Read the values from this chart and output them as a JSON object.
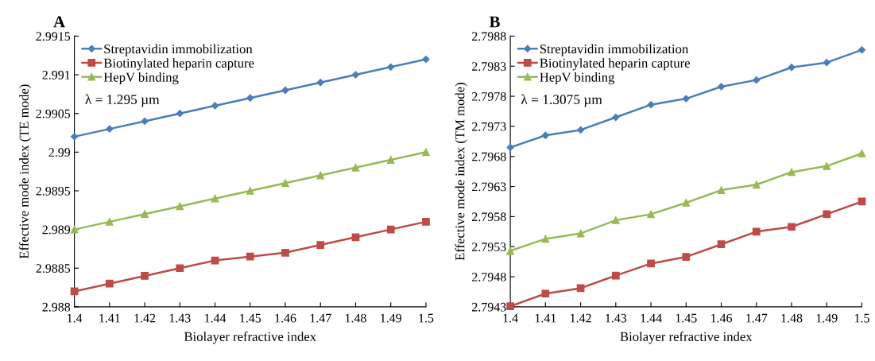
{
  "chart_data": [
    {
      "type": "line",
      "title": "A",
      "xlabel": "Biolayer refractive index",
      "ylabel": "Effective mode index (TE mode)",
      "x": [
        1.4,
        1.41,
        1.42,
        1.43,
        1.44,
        1.45,
        1.46,
        1.47,
        1.48,
        1.49,
        1.5
      ],
      "series": [
        {
          "name": "Streptavidin immobilization",
          "color": "#4a7ebb",
          "marker": "diamond",
          "values": [
            2.9902,
            2.9903,
            2.9904,
            2.9905,
            2.9906,
            2.9907,
            2.9908,
            2.9909,
            2.991,
            2.9911,
            2.9912
          ]
        },
        {
          "name": "Biotinylated heparin capture",
          "color": "#be4b48",
          "marker": "square",
          "values": [
            2.9882,
            2.9883,
            2.9884,
            2.9885,
            2.9886,
            2.98865,
            2.9887,
            2.9888,
            2.9889,
            2.989,
            2.9891
          ]
        },
        {
          "name": "HepV binding",
          "color": "#98b954",
          "marker": "triangle",
          "values": [
            2.989,
            2.9891,
            2.9892,
            2.9893,
            2.9894,
            2.9895,
            2.9896,
            2.9897,
            2.9898,
            2.9899,
            2.99
          ]
        }
      ],
      "xlim": [
        1.4,
        1.5
      ],
      "xticks": [
        1.4,
        1.41,
        1.42,
        1.43,
        1.44,
        1.45,
        1.46,
        1.47,
        1.48,
        1.49,
        1.5
      ],
      "ylim": [
        2.988,
        2.9915
      ],
      "yticks": [
        2.988,
        2.9885,
        2.989,
        2.9895,
        2.99,
        2.9905,
        2.991,
        2.9915
      ],
      "annotations": [
        "λ = 1.295 µm"
      ],
      "legend": "top left",
      "grid": false,
      "line_style": "solid"
    },
    {
      "type": "line",
      "title": "B",
      "xlabel": "Biolayer refractive index",
      "ylabel": "Effective mode index (TM mode)",
      "x": [
        1.4,
        1.41,
        1.42,
        1.43,
        1.44,
        1.45,
        1.46,
        1.47,
        1.48,
        1.49,
        1.5
      ],
      "series": [
        {
          "name": "Streptavidin immobilization",
          "color": "#4a7ebb",
          "marker": "diamond",
          "values": [
            2.79695,
            2.79715,
            2.79724,
            2.79745,
            2.79766,
            2.79776,
            2.79796,
            2.79807,
            2.79828,
            2.79836,
            2.79857
          ]
        },
        {
          "name": "Biotinylated heparin capture",
          "color": "#be4b48",
          "marker": "square",
          "values": [
            2.79431,
            2.79452,
            2.79461,
            2.79482,
            2.79502,
            2.79513,
            2.79534,
            2.79555,
            2.79563,
            2.79584,
            2.79605
          ]
        },
        {
          "name": "HepV binding",
          "color": "#98b954",
          "marker": "triangle",
          "values": [
            2.79523,
            2.79543,
            2.79552,
            2.79574,
            2.79584,
            2.79603,
            2.79624,
            2.79633,
            2.79654,
            2.79664,
            2.79685
          ]
        }
      ],
      "xlim": [
        1.4,
        1.5
      ],
      "xticks": [
        1.4,
        1.41,
        1.42,
        1.43,
        1.44,
        1.45,
        1.46,
        1.47,
        1.48,
        1.49,
        1.5
      ],
      "ylim": [
        2.7943,
        2.7988
      ],
      "yticks": [
        2.7943,
        2.7948,
        2.7953,
        2.7958,
        2.7963,
        2.7968,
        2.7973,
        2.7978,
        2.7983,
        2.7988
      ],
      "annotations": [
        "λ = 1.3075 µm"
      ],
      "legend": "top left",
      "grid": false,
      "line_style": "solid"
    }
  ]
}
